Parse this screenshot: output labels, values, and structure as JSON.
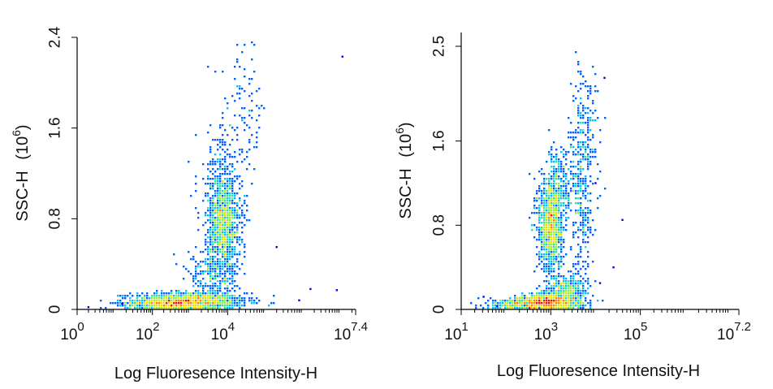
{
  "chart_data": [
    {
      "type": "scatter",
      "subtype": "flow-cytometry-density",
      "xlabel": "Log Fluoresence Intensity-H",
      "ylabel": "SSC-H",
      "ylabel_unit": "(10",
      "ylabel_unit_exp": "6",
      "ylabel_unit_close": ")",
      "x_scale": "log",
      "xlim_exp": [
        0,
        7.4
      ],
      "ylim": [
        0,
        2.4
      ],
      "x_ticks": [
        {
          "base": "10",
          "exp": "0",
          "value_exp": 0
        },
        {
          "base": "10",
          "exp": "2",
          "value_exp": 2
        },
        {
          "base": "10",
          "exp": "4",
          "value_exp": 4
        },
        {
          "base": "10",
          "exp": "7.4",
          "value_exp": 7.4
        }
      ],
      "y_ticks": [
        {
          "label": "0",
          "value": 0
        },
        {
          "label": "0.8",
          "value": 0.8
        },
        {
          "label": "1.6",
          "value": 1.6
        },
        {
          "label": "2.4",
          "value": 2.4
        }
      ],
      "populations": [
        {
          "x_exp": 3.0,
          "y": 0.07,
          "sx": 0.75,
          "sy": 0.04,
          "n": 1100
        },
        {
          "x_exp": 2.4,
          "y": 0.05,
          "sx": 0.55,
          "sy": 0.03,
          "n": 450
        },
        {
          "x_exp": 3.9,
          "y": 0.75,
          "sx": 0.22,
          "sy": 0.22,
          "n": 1000
        },
        {
          "x_exp": 3.8,
          "y": 1.1,
          "sx": 0.3,
          "sy": 0.25,
          "n": 200
        },
        {
          "x_exp": 3.6,
          "y": 0.28,
          "sx": 0.35,
          "sy": 0.12,
          "n": 260
        },
        {
          "x_exp": 4.4,
          "y": 1.7,
          "sx": 0.3,
          "sy": 0.35,
          "n": 110
        }
      ],
      "outliers": [
        [
          7.05,
          2.23
        ],
        [
          6.2,
          0.18
        ],
        [
          6.9,
          0.17
        ],
        [
          5.3,
          0.55
        ],
        [
          5.9,
          0.08
        ],
        [
          1.2,
          0.05
        ],
        [
          0.3,
          0.02
        ]
      ],
      "color_scale": [
        "#0000dd",
        "#0060ff",
        "#00c0ff",
        "#30e0a0",
        "#90f040",
        "#f0e000",
        "#ff8000",
        "#ee1010"
      ]
    },
    {
      "type": "scatter",
      "subtype": "flow-cytometry-density",
      "xlabel": "Log Fluoresence Intensity-H",
      "ylabel": "SSC-H",
      "ylabel_unit": "(10",
      "ylabel_unit_exp": "6",
      "ylabel_unit_close": ")",
      "x_scale": "log",
      "xlim_exp": [
        1,
        7.2
      ],
      "ylim": [
        0,
        2.5
      ],
      "x_ticks": [
        {
          "base": "10",
          "exp": "1",
          "value_exp": 1
        },
        {
          "base": "10",
          "exp": "3",
          "value_exp": 3
        },
        {
          "base": "10",
          "exp": "5",
          "value_exp": 5
        },
        {
          "base": "10",
          "exp": "7.2",
          "value_exp": 7.2
        }
      ],
      "y_ticks": [
        {
          "label": "0",
          "value": 0
        },
        {
          "label": "0.8",
          "value": 0.8
        },
        {
          "label": "1.6",
          "value": 1.6
        },
        {
          "label": "2.5",
          "value": 2.5
        }
      ],
      "populations": [
        {
          "x_exp": 3.0,
          "y": 0.07,
          "sx": 0.35,
          "sy": 0.04,
          "n": 950
        },
        {
          "x_exp": 2.4,
          "y": 0.05,
          "sx": 0.4,
          "sy": 0.03,
          "n": 350
        },
        {
          "x_exp": 3.35,
          "y": 0.2,
          "sx": 0.22,
          "sy": 0.06,
          "n": 300
        },
        {
          "x_exp": 3.0,
          "y": 0.8,
          "sx": 0.14,
          "sy": 0.22,
          "n": 1100
        },
        {
          "x_exp": 3.2,
          "y": 1.2,
          "sx": 0.16,
          "sy": 0.2,
          "n": 250
        },
        {
          "x_exp": 3.7,
          "y": 1.1,
          "sx": 0.12,
          "sy": 0.4,
          "n": 320
        },
        {
          "x_exp": 3.8,
          "y": 1.85,
          "sx": 0.15,
          "sy": 0.25,
          "n": 110
        }
      ],
      "outliers": [
        [
          4.2,
          2.2
        ],
        [
          4.6,
          0.85
        ],
        [
          4.0,
          1.2
        ],
        [
          1.8,
          0.03
        ],
        [
          1.5,
          0.12
        ],
        [
          4.1,
          0.25
        ],
        [
          4.4,
          0.4
        ]
      ],
      "color_scale": [
        "#0000dd",
        "#0060ff",
        "#00c0ff",
        "#30e0a0",
        "#90f040",
        "#f0e000",
        "#ff8000",
        "#ee1010"
      ]
    }
  ]
}
